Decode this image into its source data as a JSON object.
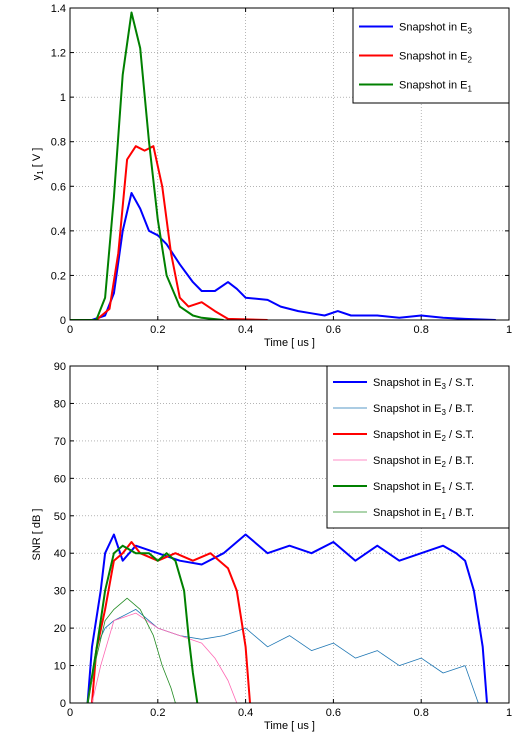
{
  "chart_data": [
    {
      "type": "line",
      "xlabel": "Time [ us ]",
      "ylabel_main": "y",
      "ylabel_sub": "1",
      "ylabel_unit": " [ V ]",
      "xlim": [
        0,
        1
      ],
      "ylim": [
        0,
        1.4
      ],
      "xticks": [
        "0",
        "0.2",
        "0.4",
        "0.6",
        "0.8",
        "1"
      ],
      "yticks": [
        "0",
        "0.2",
        "0.4",
        "0.6",
        "0.8",
        "1",
        "1.2",
        "1.4"
      ],
      "grid": true,
      "legend_position": "top-right",
      "series": [
        {
          "name_main": "Snapshot in E",
          "name_sub": "3",
          "name_suffix": "",
          "color": "#0000ff",
          "width": 2,
          "points": [
            [
              0,
              0
            ],
            [
              0.05,
              0
            ],
            [
              0.08,
              0.02
            ],
            [
              0.1,
              0.12
            ],
            [
              0.12,
              0.4
            ],
            [
              0.14,
              0.57
            ],
            [
              0.16,
              0.5
            ],
            [
              0.18,
              0.4
            ],
            [
              0.2,
              0.38
            ],
            [
              0.22,
              0.34
            ],
            [
              0.25,
              0.25
            ],
            [
              0.28,
              0.17
            ],
            [
              0.3,
              0.13
            ],
            [
              0.33,
              0.13
            ],
            [
              0.36,
              0.17
            ],
            [
              0.38,
              0.14
            ],
            [
              0.4,
              0.1
            ],
            [
              0.45,
              0.09
            ],
            [
              0.48,
              0.06
            ],
            [
              0.52,
              0.04
            ],
            [
              0.55,
              0.03
            ],
            [
              0.58,
              0.02
            ],
            [
              0.61,
              0.04
            ],
            [
              0.64,
              0.02
            ],
            [
              0.7,
              0.02
            ],
            [
              0.75,
              0.01
            ],
            [
              0.8,
              0.02
            ],
            [
              0.85,
              0.01
            ],
            [
              0.9,
              0.005
            ],
            [
              0.97,
              0
            ]
          ]
        },
        {
          "name_main": "Snapshot in E",
          "name_sub": "2",
          "name_suffix": "",
          "color": "#ff0000",
          "width": 2,
          "points": [
            [
              0,
              0
            ],
            [
              0.06,
              0
            ],
            [
              0.09,
              0.05
            ],
            [
              0.11,
              0.3
            ],
            [
              0.13,
              0.72
            ],
            [
              0.15,
              0.78
            ],
            [
              0.17,
              0.76
            ],
            [
              0.19,
              0.78
            ],
            [
              0.21,
              0.6
            ],
            [
              0.23,
              0.3
            ],
            [
              0.25,
              0.1
            ],
            [
              0.27,
              0.06
            ],
            [
              0.3,
              0.08
            ],
            [
              0.33,
              0.04
            ],
            [
              0.36,
              0.005
            ],
            [
              0.45,
              0
            ]
          ]
        },
        {
          "name_main": "Snapshot in E",
          "name_sub": "1",
          "name_suffix": "",
          "color": "#008000",
          "width": 2,
          "points": [
            [
              0,
              0
            ],
            [
              0.06,
              0
            ],
            [
              0.08,
              0.1
            ],
            [
              0.1,
              0.55
            ],
            [
              0.12,
              1.1
            ],
            [
              0.14,
              1.38
            ],
            [
              0.16,
              1.22
            ],
            [
              0.18,
              0.8
            ],
            [
              0.2,
              0.45
            ],
            [
              0.22,
              0.2
            ],
            [
              0.25,
              0.06
            ],
            [
              0.28,
              0.02
            ],
            [
              0.3,
              0.01
            ],
            [
              0.35,
              0
            ]
          ]
        }
      ]
    },
    {
      "type": "line",
      "xlabel": "Time [ us ]",
      "ylabel_main": "SNR [ dB ]",
      "ylabel_sub": "",
      "ylabel_unit": "",
      "xlim": [
        0,
        1
      ],
      "ylim": [
        0,
        90
      ],
      "xticks": [
        "0",
        "0.2",
        "0.4",
        "0.6",
        "0.8",
        "1"
      ],
      "yticks": [
        "0",
        "10",
        "20",
        "30",
        "40",
        "50",
        "60",
        "70",
        "80",
        "90"
      ],
      "grid": true,
      "legend_position": "top-right",
      "series": [
        {
          "name_main": "Snapshot in E",
          "name_sub": "3",
          "name_suffix": " / S.T.",
          "color": "#0000ff",
          "width": 2,
          "points": [
            [
              0.04,
              0
            ],
            [
              0.05,
              15
            ],
            [
              0.07,
              30
            ],
            [
              0.08,
              40
            ],
            [
              0.1,
              45
            ],
            [
              0.12,
              38
            ],
            [
              0.15,
              42
            ],
            [
              0.2,
              40
            ],
            [
              0.25,
              38
            ],
            [
              0.3,
              37
            ],
            [
              0.35,
              40
            ],
            [
              0.4,
              45
            ],
            [
              0.45,
              40
            ],
            [
              0.5,
              42
            ],
            [
              0.55,
              40
            ],
            [
              0.6,
              43
            ],
            [
              0.65,
              38
            ],
            [
              0.7,
              42
            ],
            [
              0.75,
              38
            ],
            [
              0.8,
              40
            ],
            [
              0.85,
              42
            ],
            [
              0.88,
              40
            ],
            [
              0.9,
              38
            ],
            [
              0.92,
              30
            ],
            [
              0.94,
              15
            ],
            [
              0.95,
              0
            ]
          ]
        },
        {
          "name_main": "Snapshot in E",
          "name_sub": "3",
          "name_suffix": " / B.T.",
          "color": "#1f77b4",
          "width": 0.8,
          "points": [
            [
              0.04,
              0
            ],
            [
              0.06,
              15
            ],
            [
              0.08,
              20
            ],
            [
              0.1,
              22
            ],
            [
              0.15,
              25
            ],
            [
              0.2,
              20
            ],
            [
              0.25,
              18
            ],
            [
              0.3,
              17
            ],
            [
              0.35,
              18
            ],
            [
              0.4,
              20
            ],
            [
              0.45,
              15
            ],
            [
              0.5,
              18
            ],
            [
              0.55,
              14
            ],
            [
              0.6,
              16
            ],
            [
              0.65,
              12
            ],
            [
              0.7,
              14
            ],
            [
              0.75,
              10
            ],
            [
              0.8,
              12
            ],
            [
              0.85,
              8
            ],
            [
              0.9,
              10
            ],
            [
              0.93,
              0
            ]
          ]
        },
        {
          "name_main": "Snapshot in E",
          "name_sub": "2",
          "name_suffix": " / S.T.",
          "color": "#ff0000",
          "width": 2,
          "points": [
            [
              0.05,
              0
            ],
            [
              0.06,
              14
            ],
            [
              0.08,
              25
            ],
            [
              0.1,
              38
            ],
            [
              0.12,
              40
            ],
            [
              0.14,
              43
            ],
            [
              0.16,
              40
            ],
            [
              0.2,
              38
            ],
            [
              0.24,
              40
            ],
            [
              0.28,
              38
            ],
            [
              0.32,
              40
            ],
            [
              0.36,
              36
            ],
            [
              0.38,
              30
            ],
            [
              0.4,
              15
            ],
            [
              0.41,
              0
            ]
          ]
        },
        {
          "name_main": "Snapshot in E",
          "name_sub": "2",
          "name_suffix": " / B.T.",
          "color": "#ff69b4",
          "width": 0.8,
          "points": [
            [
              0.05,
              0
            ],
            [
              0.07,
              10
            ],
            [
              0.1,
              22
            ],
            [
              0.15,
              24
            ],
            [
              0.2,
              20
            ],
            [
              0.25,
              18
            ],
            [
              0.3,
              16
            ],
            [
              0.33,
              12
            ],
            [
              0.36,
              6
            ],
            [
              0.38,
              0
            ]
          ]
        },
        {
          "name_main": "Snapshot in E",
          "name_sub": "1",
          "name_suffix": " / S.T.",
          "color": "#008000",
          "width": 2,
          "points": [
            [
              0.04,
              0
            ],
            [
              0.06,
              14
            ],
            [
              0.08,
              30
            ],
            [
              0.1,
              40
            ],
            [
              0.12,
              42
            ],
            [
              0.15,
              40
            ],
            [
              0.18,
              40
            ],
            [
              0.2,
              38
            ],
            [
              0.22,
              40
            ],
            [
              0.24,
              38
            ],
            [
              0.26,
              30
            ],
            [
              0.27,
              18
            ],
            [
              0.28,
              8
            ],
            [
              0.29,
              0
            ]
          ]
        },
        {
          "name_main": "Snapshot in E",
          "name_sub": "1",
          "name_suffix": " / B.T.",
          "color": "#228b22",
          "width": 0.8,
          "points": [
            [
              0.04,
              0
            ],
            [
              0.06,
              12
            ],
            [
              0.08,
              22
            ],
            [
              0.1,
              25
            ],
            [
              0.13,
              28
            ],
            [
              0.16,
              25
            ],
            [
              0.19,
              18
            ],
            [
              0.21,
              10
            ],
            [
              0.23,
              4
            ],
            [
              0.24,
              0
            ]
          ]
        }
      ]
    }
  ]
}
